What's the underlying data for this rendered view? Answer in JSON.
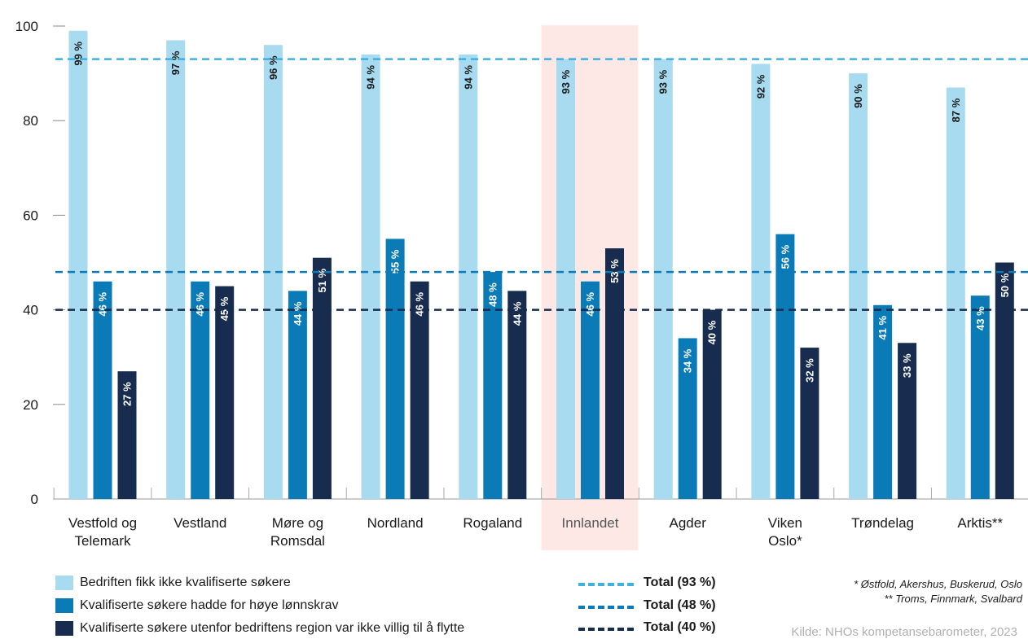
{
  "chart_data": {
    "type": "bar",
    "categories": [
      [
        "Vestfold og",
        "Telemark"
      ],
      [
        "Vestland"
      ],
      [
        "Møre og",
        "Romsdal"
      ],
      [
        "Nordland"
      ],
      [
        "Rogaland"
      ],
      [
        "Innlandet"
      ],
      [
        "Agder"
      ],
      [
        "Viken",
        "Oslo*"
      ],
      [
        "Trøndelag"
      ],
      [
        "Arktis**"
      ]
    ],
    "highlight_category": "Innlandet",
    "series": [
      {
        "name": "Bedriften fikk ikke kvalifiserte søkere",
        "color": "#a8daf0",
        "label_color": "#1a1a1a",
        "values": [
          99,
          97,
          96,
          94,
          94,
          93,
          93,
          92,
          90,
          87
        ],
        "labels": [
          "99 %",
          "97 %",
          "96 %",
          "94 %",
          "94 %",
          "93 %",
          "93 %",
          "92 %",
          "90 %",
          "87 %"
        ]
      },
      {
        "name": "Kvalifiserte søkere hadde for høye lønnskrav",
        "color": "#0b7bb8",
        "label_color": "#ffffff",
        "values": [
          46,
          46,
          44,
          55,
          48,
          46,
          34,
          56,
          41,
          43
        ],
        "labels": [
          "46 %",
          "46 %",
          "44 %",
          "55 %",
          "48 %",
          "46 %",
          "34 %",
          "56 %",
          "41 %",
          "43 %"
        ]
      },
      {
        "name": "Kvalifiserte søkere utenfor bedriftens region var ikke villig til å flytte",
        "color": "#172c4f",
        "label_color": "#ffffff",
        "values": [
          27,
          45,
          51,
          46,
          44,
          53,
          40,
          32,
          33,
          50
        ],
        "labels": [
          "27 %",
          "45 %",
          "51 %",
          "46 %",
          "44 %",
          "53 %",
          "40 %",
          "32 %",
          "33 %",
          "50 %"
        ]
      }
    ],
    "reference_lines": [
      {
        "label": "Total (93 %)",
        "value": 93,
        "color": "#3fb0e0"
      },
      {
        "label": "Total (48 %)",
        "value": 48,
        "color": "#0b7bb8"
      },
      {
        "label": "Total (40 %)",
        "value": 40,
        "color": "#172c4f"
      }
    ],
    "yticks": [
      "0",
      "20",
      "40",
      "60",
      "80",
      "100"
    ],
    "ytick_values": [
      0,
      20,
      40,
      60,
      80,
      100
    ],
    "ylim": [
      0,
      100
    ],
    "grid": false,
    "legend_position": "bottom"
  },
  "notes": {
    "footnote1": "* Østfold, Akershus, Buskerud, Oslo",
    "footnote2": "** Troms, Finnmark, Svalbard",
    "source": "Kilde: NHOs kompetansebarometer, 2023"
  }
}
